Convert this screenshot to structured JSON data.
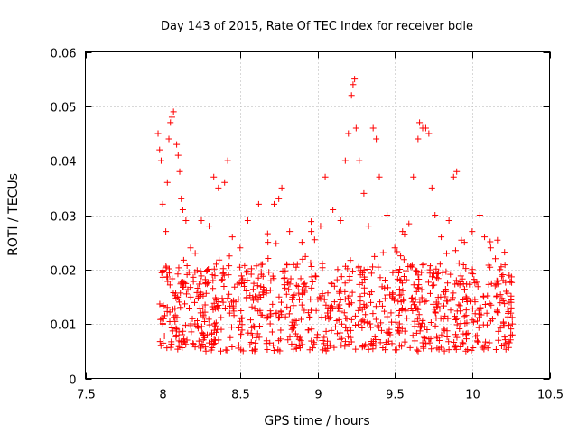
{
  "chart_data": {
    "type": "scatter",
    "title": "Day 143 of 2015, Rate Of TEC Index for receiver bdle",
    "xlabel": "GPS time / hours",
    "ylabel": "ROTI / TECUs",
    "xlim": [
      7.5,
      10.5
    ],
    "ylim": [
      0,
      0.06
    ],
    "x_ticks": [
      "7.5",
      "8",
      "8.5",
      "9",
      "9.5",
      "10",
      "10.5"
    ],
    "y_ticks": [
      "0",
      "0.01",
      "0.02",
      "0.03",
      "0.04",
      "0.05",
      "0.06"
    ],
    "grid": true,
    "marker": "+",
    "color": "#ff0000",
    "series": [
      {
        "name": "ROTI",
        "points": [
          [
            7.97,
            0.045
          ],
          [
            7.98,
            0.042
          ],
          [
            7.99,
            0.04
          ],
          [
            8.0,
            0.032
          ],
          [
            8.02,
            0.027
          ],
          [
            8.03,
            0.036
          ],
          [
            8.04,
            0.044
          ],
          [
            8.05,
            0.047
          ],
          [
            8.06,
            0.048
          ],
          [
            8.07,
            0.049
          ],
          [
            8.09,
            0.043
          ],
          [
            8.1,
            0.041
          ],
          [
            8.11,
            0.038
          ],
          [
            8.12,
            0.033
          ],
          [
            8.13,
            0.031
          ],
          [
            8.15,
            0.029
          ],
          [
            8.18,
            0.024
          ],
          [
            8.21,
            0.023
          ],
          [
            8.25,
            0.029
          ],
          [
            8.3,
            0.028
          ],
          [
            8.33,
            0.037
          ],
          [
            8.36,
            0.035
          ],
          [
            8.4,
            0.036
          ],
          [
            8.42,
            0.04
          ],
          [
            8.45,
            0.026
          ],
          [
            8.5,
            0.024
          ],
          [
            8.55,
            0.029
          ],
          [
            8.62,
            0.032
          ],
          [
            8.68,
            0.025
          ],
          [
            8.72,
            0.032
          ],
          [
            8.75,
            0.033
          ],
          [
            8.77,
            0.035
          ],
          [
            8.82,
            0.027
          ],
          [
            8.9,
            0.025
          ],
          [
            8.96,
            0.027
          ],
          [
            9.02,
            0.028
          ],
          [
            9.05,
            0.037
          ],
          [
            9.1,
            0.031
          ],
          [
            9.15,
            0.029
          ],
          [
            9.18,
            0.04
          ],
          [
            9.2,
            0.045
          ],
          [
            9.22,
            0.052
          ],
          [
            9.23,
            0.054
          ],
          [
            9.24,
            0.055
          ],
          [
            9.25,
            0.046
          ],
          [
            9.27,
            0.04
          ],
          [
            9.3,
            0.034
          ],
          [
            9.33,
            0.028
          ],
          [
            9.36,
            0.046
          ],
          [
            9.38,
            0.044
          ],
          [
            9.4,
            0.037
          ],
          [
            9.45,
            0.03
          ],
          [
            9.5,
            0.024
          ],
          [
            9.55,
            0.027
          ],
          [
            9.62,
            0.037
          ],
          [
            9.65,
            0.044
          ],
          [
            9.66,
            0.047
          ],
          [
            9.68,
            0.046
          ],
          [
            9.7,
            0.046
          ],
          [
            9.72,
            0.045
          ],
          [
            9.74,
            0.035
          ],
          [
            9.76,
            0.03
          ],
          [
            9.8,
            0.026
          ],
          [
            9.85,
            0.029
          ],
          [
            9.88,
            0.037
          ],
          [
            9.9,
            0.038
          ],
          [
            9.95,
            0.025
          ],
          [
            10.0,
            0.027
          ],
          [
            10.05,
            0.03
          ],
          [
            10.08,
            0.026
          ],
          [
            10.12,
            0.024
          ],
          [
            10.15,
            0.022
          ],
          [
            10.18,
            0.02
          ],
          [
            10.2,
            0.018
          ],
          [
            10.22,
            0.016
          ],
          [
            10.24,
            0.014
          ],
          [
            10.25,
            0.012
          ],
          [
            10.26,
            0.01
          ],
          [
            10.26,
            0.008
          ]
        ],
        "band": {
          "x_range": [
            7.98,
            10.26
          ],
          "core_y_range": [
            0.005,
            0.021
          ],
          "count": 950
        }
      }
    ]
  }
}
